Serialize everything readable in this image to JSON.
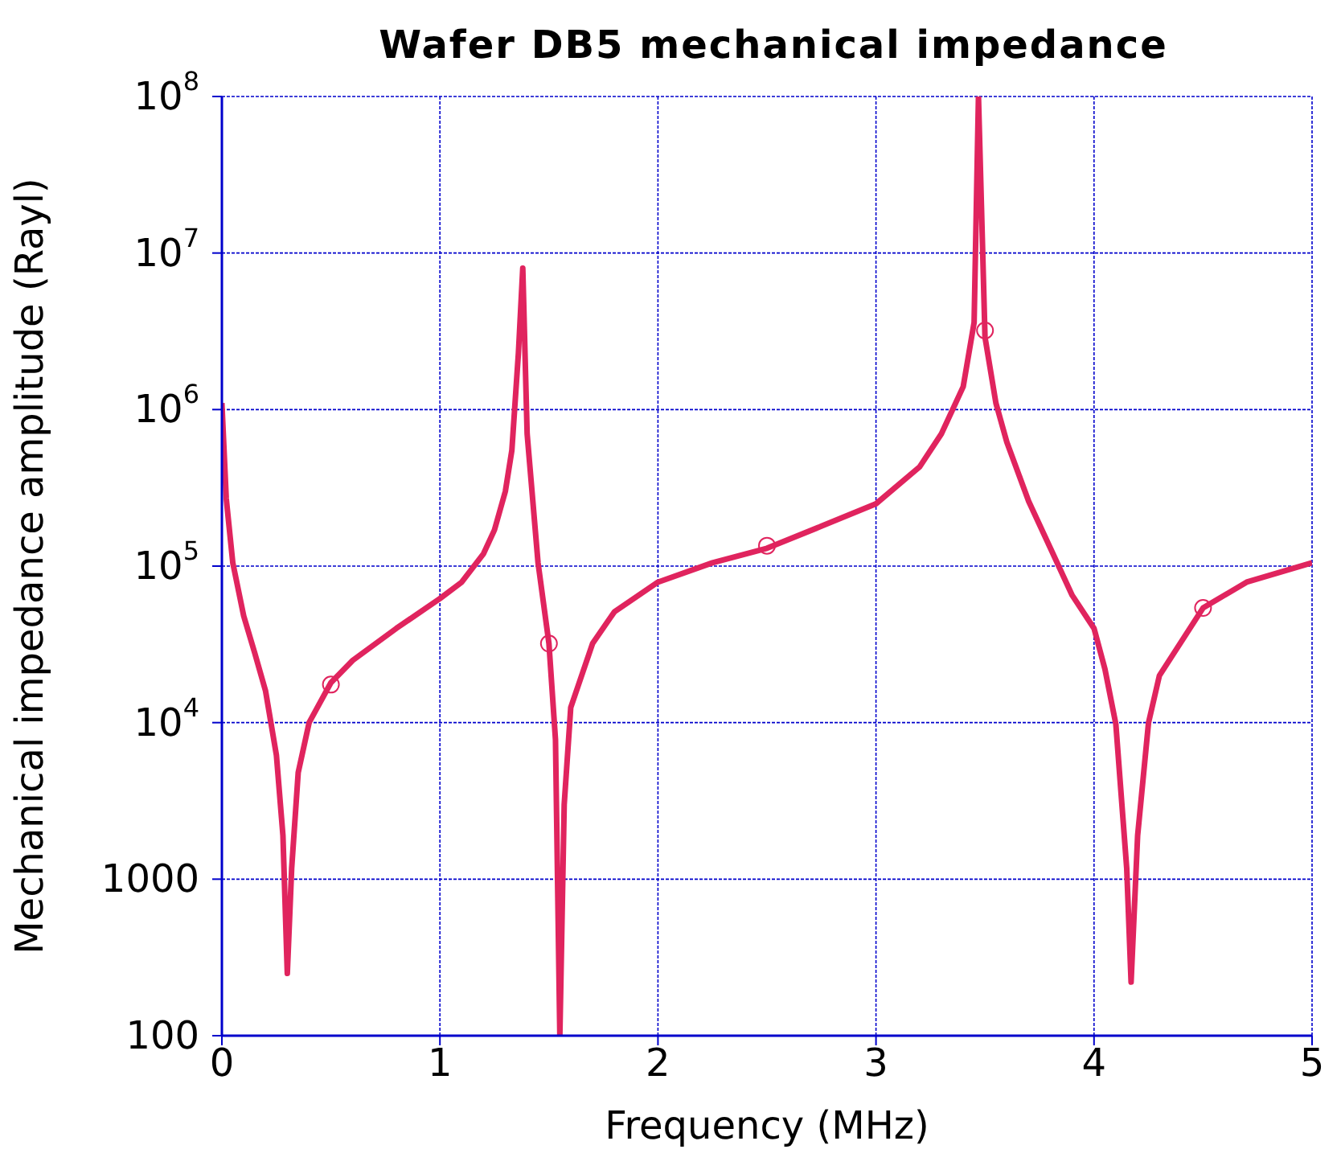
{
  "chart_data": {
    "type": "line",
    "title": "Wafer DB5 mechanical impedance",
    "xlabel": "Frequency (MHz)",
    "ylabel": "Mechanical impedance amplitude (Rayl)",
    "xlim": [
      0,
      5
    ],
    "xticks": [
      0,
      1,
      2,
      3,
      4,
      5
    ],
    "ylim": [
      100,
      100000000
    ],
    "log": "y",
    "yticks": [
      {
        "value": 100,
        "label": "100"
      },
      {
        "value": 1000,
        "label": "1000"
      },
      {
        "value": 10000,
        "label": "10$^{4}$"
      },
      {
        "value": 100000,
        "label": "10$^{5}$"
      },
      {
        "value": 1000000,
        "label": "10$^{6}$"
      },
      {
        "value": 10000000,
        "label": "10$^{7}$"
      },
      {
        "value": 100000000,
        "label": "10$^{8}$"
      }
    ],
    "grid": true,
    "series": [
      {
        "type": "line",
        "color": "#e0245e",
        "x": [
          0,
          0.02,
          0.05,
          0.1,
          0.15,
          0.2,
          0.25,
          0.28,
          0.3,
          0.32,
          0.35,
          0.4,
          0.5,
          0.6,
          0.8,
          1.0,
          1.1,
          1.2,
          1.25,
          1.3,
          1.33,
          1.36,
          1.38,
          1.4,
          1.45,
          1.5,
          1.53,
          1.55,
          1.57,
          1.6,
          1.7,
          1.8,
          2.0,
          2.25,
          2.5,
          2.75,
          3.0,
          3.2,
          3.3,
          3.4,
          3.45,
          3.47,
          3.5,
          3.55,
          3.6,
          3.7,
          3.8,
          3.9,
          4.0,
          4.05,
          4.1,
          4.15,
          4.17,
          4.2,
          4.25,
          4.3,
          4.5,
          4.7,
          5.0
        ],
        "values": [
          1100000,
          270000,
          105000,
          48000,
          28000,
          16000,
          6200,
          1900,
          250,
          1170,
          4800,
          10000,
          18000,
          25000,
          40000,
          62000,
          79000,
          120000,
          170000,
          300000,
          550000,
          2300000,
          8000000,
          700000,
          105000,
          32000,
          7800,
          100,
          3000,
          12500,
          32000,
          51000,
          79000,
          105000,
          130000,
          180000,
          250000,
          430000,
          700000,
          1400000,
          3600000,
          100000000,
          2900000,
          1100000,
          620000,
          260000,
          130000,
          65000,
          40000,
          22000,
          9800,
          1170,
          220,
          1900,
          10000,
          20000,
          54000,
          79000,
          105000
        ]
      },
      {
        "type": "scatter",
        "color": "#e0245e",
        "marker": "circle",
        "x": [
          0.5,
          1.5,
          2.5,
          3.5,
          4.5
        ],
        "values": [
          17500,
          32000,
          135000,
          3200000,
          54000
        ]
      }
    ]
  }
}
